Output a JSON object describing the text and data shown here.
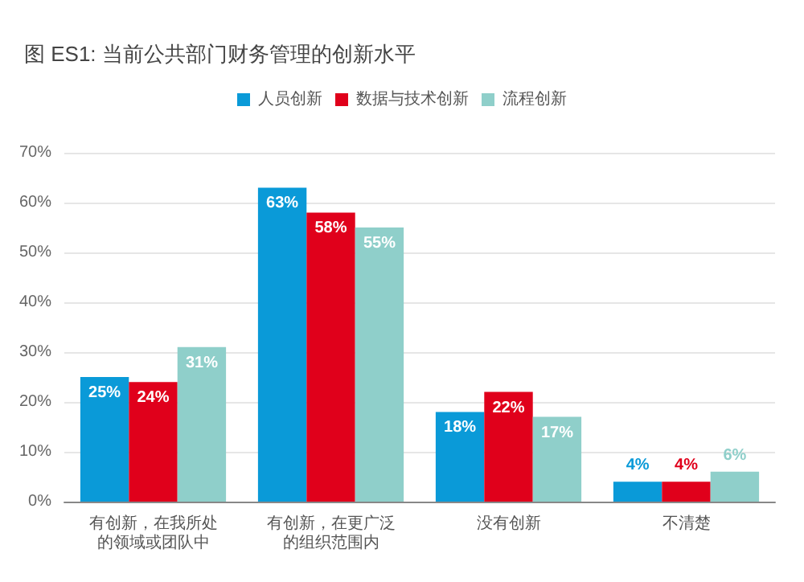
{
  "chart_data": {
    "type": "bar",
    "title": "图 ES1: 当前公共部门财务管理的创新水平",
    "categories": [
      "有创新，在我所处的领域或团队中",
      "有创新，在更广泛的组织范围内",
      "没有创新",
      "不清楚"
    ],
    "series": [
      {
        "name": "人员创新",
        "color": "#0a9ad8",
        "values": [
          25,
          63,
          18,
          4
        ],
        "value_labels": [
          "25%",
          "63%",
          "18%",
          "4%"
        ]
      },
      {
        "name": "数据与技术创新",
        "color": "#e0001b",
        "values": [
          24,
          58,
          22,
          4
        ],
        "value_labels": [
          "24%",
          "58%",
          "22%",
          "4%"
        ]
      },
      {
        "name": "流程创新",
        "color": "#8fcfca",
        "values": [
          31,
          55,
          17,
          6
        ],
        "value_labels": [
          "31%",
          "55%",
          "17%",
          "6%"
        ]
      }
    ],
    "ylim": [
      0,
      70
    ],
    "yticks": [
      {
        "value": 0,
        "label": "0%"
      },
      {
        "value": 10,
        "label": "10%"
      },
      {
        "value": 20,
        "label": "20%"
      },
      {
        "value": 30,
        "label": "30%"
      },
      {
        "value": 40,
        "label": "40%"
      },
      {
        "value": 50,
        "label": "50%"
      },
      {
        "value": 60,
        "label": "60%"
      },
      {
        "value": 70,
        "label": "70%"
      }
    ],
    "grid": "y",
    "legend": "top"
  }
}
